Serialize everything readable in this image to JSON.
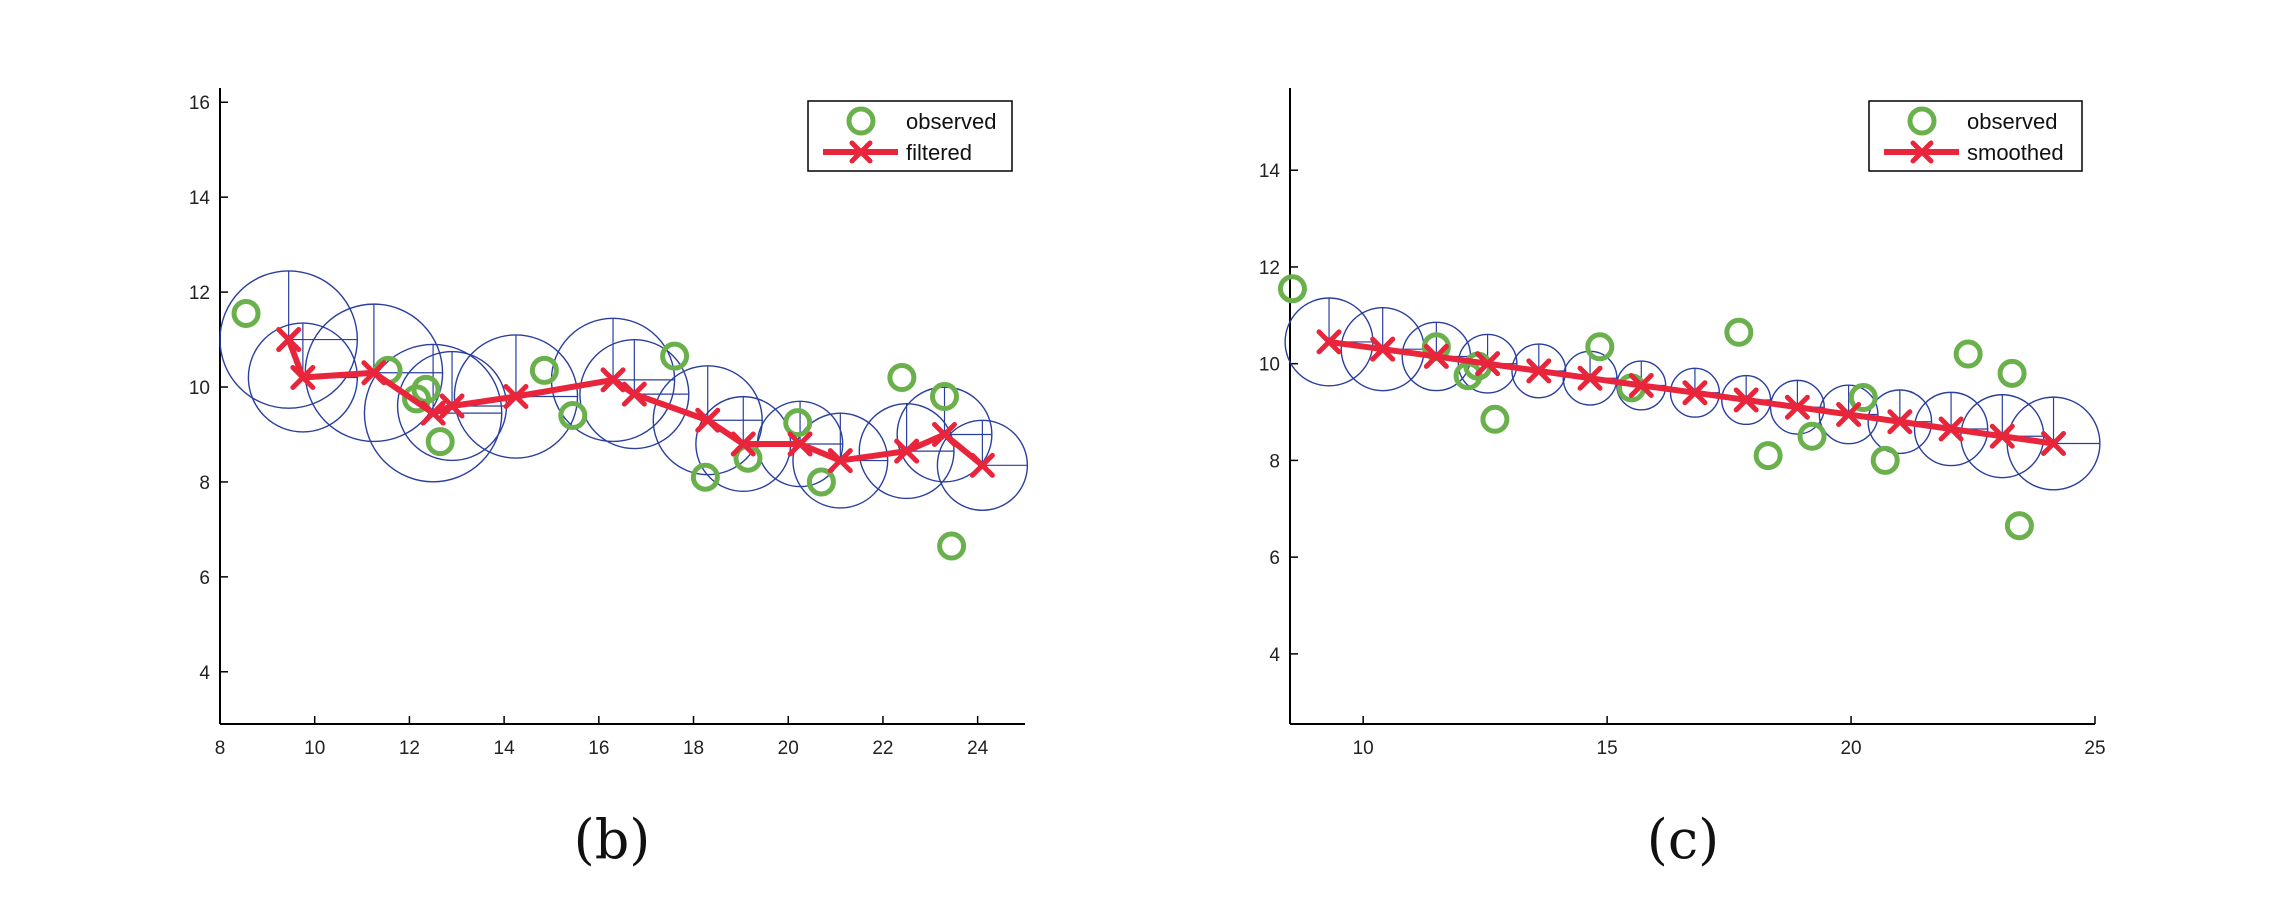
{
  "chart_data": [
    {
      "type": "scatter",
      "caption": "(b)",
      "xlim": [
        8,
        25
      ],
      "ylim": [
        2.9,
        16.3
      ],
      "xticks": [
        8,
        10,
        12,
        14,
        16,
        18,
        20,
        22,
        24
      ],
      "yticks": [
        4,
        6,
        8,
        10,
        12,
        14,
        16
      ],
      "legend": {
        "placement": "top-right",
        "observed_label": "observed",
        "line_label": "filtered"
      },
      "colors": {
        "observed": "#6ab04c",
        "line": "#e8253a",
        "ellipse": "#2a3f9e",
        "axis": "#000000"
      },
      "observed": [
        {
          "x": 8.55,
          "y": 11.55
        },
        {
          "x": 11.55,
          "y": 10.35
        },
        {
          "x": 12.15,
          "y": 9.75
        },
        {
          "x": 12.35,
          "y": 9.95
        },
        {
          "x": 12.65,
          "y": 8.85
        },
        {
          "x": 14.85,
          "y": 10.35
        },
        {
          "x": 15.45,
          "y": 9.4
        },
        {
          "x": 17.6,
          "y": 10.65
        },
        {
          "x": 18.25,
          "y": 8.1
        },
        {
          "x": 19.15,
          "y": 8.5
        },
        {
          "x": 20.2,
          "y": 9.25
        },
        {
          "x": 20.7,
          "y": 8.0
        },
        {
          "x": 22.4,
          "y": 10.2
        },
        {
          "x": 23.3,
          "y": 9.8
        },
        {
          "x": 23.45,
          "y": 6.65
        }
      ],
      "estimate": [
        {
          "x": 9.45,
          "y": 11.0,
          "r": 1.45
        },
        {
          "x": 9.75,
          "y": 10.2,
          "r": 1.15
        },
        {
          "x": 11.25,
          "y": 10.3,
          "r": 1.45
        },
        {
          "x": 12.5,
          "y": 9.45,
          "r": 1.45
        },
        {
          "x": 12.9,
          "y": 9.6,
          "r": 1.15
        },
        {
          "x": 14.25,
          "y": 9.8,
          "r": 1.3
        },
        {
          "x": 16.3,
          "y": 10.15,
          "r": 1.3
        },
        {
          "x": 16.75,
          "y": 9.85,
          "r": 1.15
        },
        {
          "x": 18.3,
          "y": 9.3,
          "r": 1.15
        },
        {
          "x": 19.05,
          "y": 8.8,
          "r": 1.0
        },
        {
          "x": 20.25,
          "y": 8.8,
          "r": 0.9
        },
        {
          "x": 21.1,
          "y": 8.45,
          "r": 1.0
        },
        {
          "x": 22.5,
          "y": 8.65,
          "r": 1.0
        },
        {
          "x": 23.3,
          "y": 9.0,
          "r": 1.0
        },
        {
          "x": 24.1,
          "y": 8.35,
          "r": 0.95
        }
      ]
    },
    {
      "type": "scatter",
      "caption": "(c)",
      "xlim": [
        8.5,
        25
      ],
      "ylim": [
        2.55,
        15.7
      ],
      "xticks": [
        10,
        15,
        20,
        25
      ],
      "yticks": [
        4,
        6,
        8,
        10,
        12,
        14
      ],
      "legend": {
        "placement": "top-right",
        "observed_label": "observed",
        "line_label": "smoothed"
      },
      "colors": {
        "observed": "#6ab04c",
        "line": "#e8253a",
        "ellipse": "#2a3f9e",
        "axis": "#000000"
      },
      "observed": [
        {
          "x": 8.55,
          "y": 11.55
        },
        {
          "x": 11.5,
          "y": 10.35
        },
        {
          "x": 12.15,
          "y": 9.75
        },
        {
          "x": 12.35,
          "y": 9.95
        },
        {
          "x": 12.7,
          "y": 8.85
        },
        {
          "x": 14.85,
          "y": 10.35
        },
        {
          "x": 15.5,
          "y": 9.5
        },
        {
          "x": 17.7,
          "y": 10.65
        },
        {
          "x": 18.3,
          "y": 8.1
        },
        {
          "x": 19.2,
          "y": 8.5
        },
        {
          "x": 20.25,
          "y": 9.3
        },
        {
          "x": 20.7,
          "y": 8.0
        },
        {
          "x": 22.4,
          "y": 10.2
        },
        {
          "x": 23.3,
          "y": 9.8
        },
        {
          "x": 23.45,
          "y": 6.65
        }
      ],
      "estimate": [
        {
          "x": 9.3,
          "y": 10.45,
          "r": 0.9
        },
        {
          "x": 10.4,
          "y": 10.3,
          "r": 0.85
        },
        {
          "x": 11.5,
          "y": 10.15,
          "r": 0.7
        },
        {
          "x": 12.55,
          "y": 10.0,
          "r": 0.6
        },
        {
          "x": 13.6,
          "y": 9.85,
          "r": 0.55
        },
        {
          "x": 14.65,
          "y": 9.7,
          "r": 0.55
        },
        {
          "x": 15.7,
          "y": 9.55,
          "r": 0.5
        },
        {
          "x": 16.8,
          "y": 9.4,
          "r": 0.5
        },
        {
          "x": 17.85,
          "y": 9.25,
          "r": 0.5
        },
        {
          "x": 18.9,
          "y": 9.1,
          "r": 0.55
        },
        {
          "x": 19.95,
          "y": 8.95,
          "r": 0.6
        },
        {
          "x": 21.0,
          "y": 8.8,
          "r": 0.65
        },
        {
          "x": 22.05,
          "y": 8.65,
          "r": 0.75
        },
        {
          "x": 23.1,
          "y": 8.5,
          "r": 0.85
        },
        {
          "x": 24.15,
          "y": 8.35,
          "r": 0.95
        }
      ]
    }
  ]
}
